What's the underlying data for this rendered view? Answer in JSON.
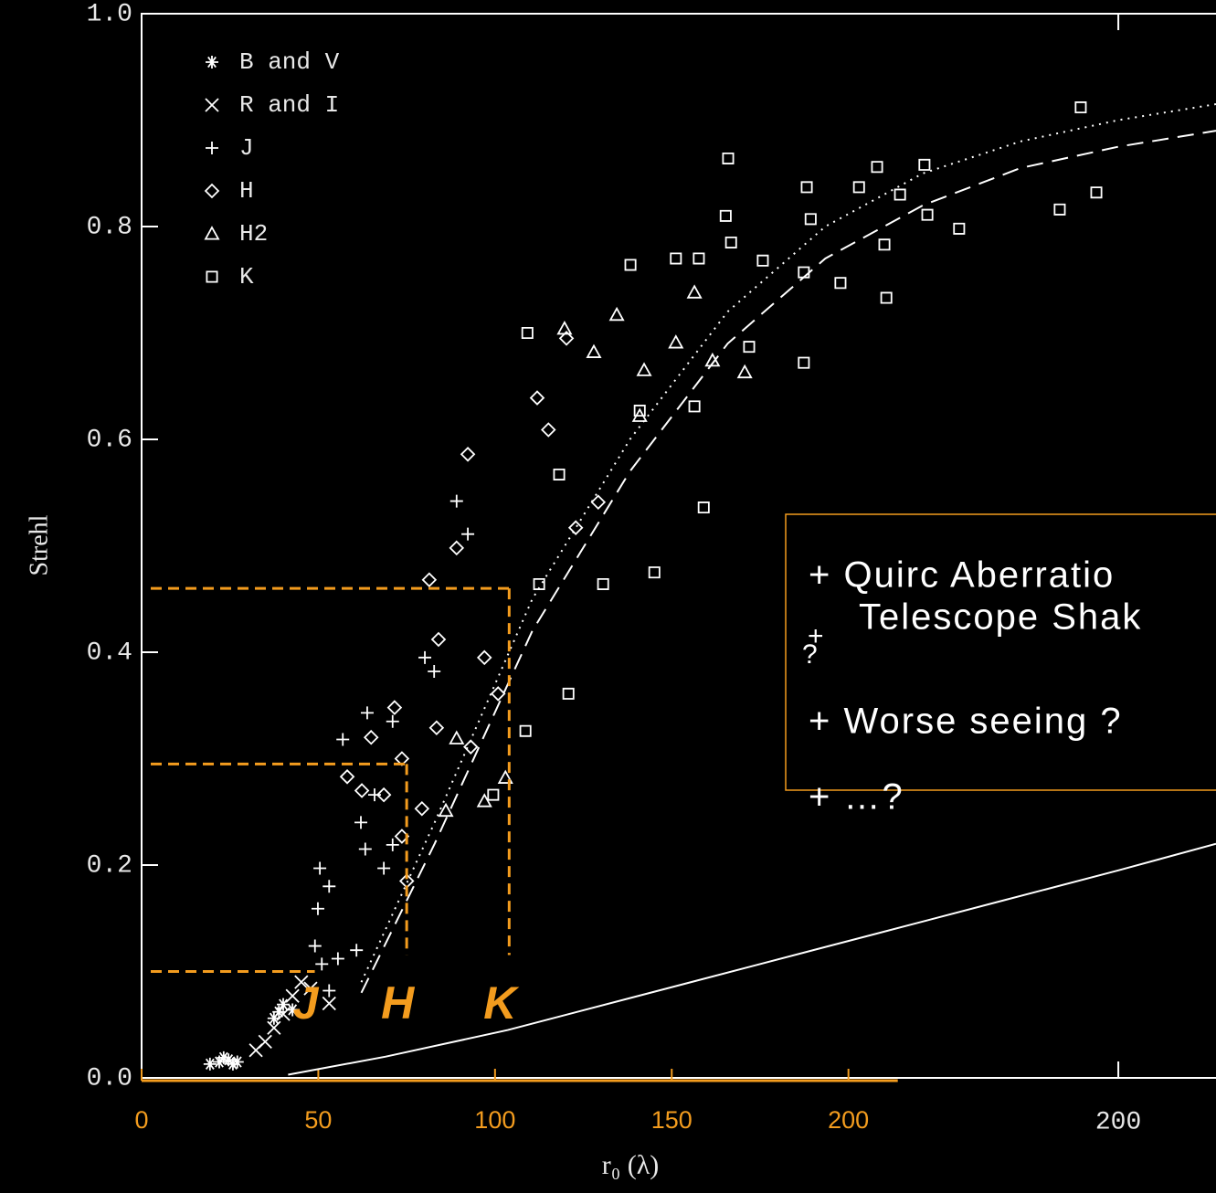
{
  "chart_data": {
    "type": "scatter",
    "xlabel": "r₀ (λ)",
    "ylabel": "Strehl",
    "xlim": [
      0,
      304
    ],
    "xticks": [
      0,
      50,
      100,
      150,
      200
    ],
    "x2lim": [
      0,
      220
    ],
    "x2ticks": [
      200
    ],
    "ylim": [
      0,
      1
    ],
    "yticks": [
      {
        "value": 0,
        "label": "0.0"
      },
      0.2,
      0.4,
      0.6,
      0.8,
      {
        "value": 1,
        "label": "1.0"
      }
    ],
    "axis_color": "#ffffff",
    "overlay_color": "#f39c1e",
    "legend": "upper left",
    "series": [
      {
        "name": "B and V",
        "marker": "asterisk",
        "color": "#ffffff",
        "axis": "x2",
        "x": [
          15.9,
          17.8,
          19.6,
          27.1,
          29.0,
          30.9,
          16.8,
          18.7,
          14.0,
          28.1
        ],
        "values": [
          0.015,
          0.017,
          0.015,
          0.056,
          0.069,
          0.064,
          0.019,
          0.013,
          0.013,
          0.062
        ]
      },
      {
        "name": "R and I",
        "marker": "cross",
        "color": "#ffffff",
        "axis": "x2",
        "x": [
          32.7,
          29.0,
          25.3,
          23.4,
          30.9,
          38.4,
          27.1,
          34.6
        ],
        "values": [
          0.09,
          0.06,
          0.034,
          0.026,
          0.077,
          0.07,
          0.047,
          0.084
        ]
      },
      {
        "name": "J",
        "marker": "plus",
        "color": "#ffffff",
        "axis": "x2",
        "x": [
          64.5,
          66.8,
          58.0,
          46.2,
          51.4,
          41.2,
          47.7,
          44.9,
          45.8,
          36.5,
          38.4,
          36.1,
          35.5,
          36.9,
          38.4,
          44.0,
          49.6,
          51.4,
          40.2,
          59.9
        ],
        "values": [
          0.542,
          0.511,
          0.395,
          0.343,
          0.335,
          0.318,
          0.266,
          0.24,
          0.215,
          0.197,
          0.18,
          0.159,
          0.124,
          0.107,
          0.082,
          0.12,
          0.197,
          0.219,
          0.112,
          0.382
        ]
      },
      {
        "name": "H",
        "marker": "diamond",
        "color": "#ffffff",
        "axis": "x2",
        "x": [
          66.8,
          81.0,
          87.0,
          58.9,
          64.5,
          60.8,
          51.8,
          47.0,
          42.1,
          53.3,
          54.3,
          57.4,
          49.6,
          60.4,
          70.2,
          67.4,
          73.0,
          88.9,
          83.3,
          93.5,
          53.3,
          45.1
        ],
        "values": [
          0.586,
          0.639,
          0.695,
          0.468,
          0.498,
          0.412,
          0.348,
          0.32,
          0.283,
          0.3,
          0.185,
          0.253,
          0.266,
          0.329,
          0.395,
          0.311,
          0.361,
          0.517,
          0.609,
          0.541,
          0.227,
          0.27
        ]
      },
      {
        "name": "H2",
        "marker": "triangle",
        "color": "#ffffff",
        "axis": "x2",
        "x": [
          86.6,
          97.3,
          113.2,
          109.4,
          92.6,
          102.0,
          64.5,
          62.3,
          70.2,
          74.5,
          102.9,
          116.9,
          123.5
        ],
        "values": [
          0.704,
          0.717,
          0.738,
          0.691,
          0.682,
          0.622,
          0.319,
          0.251,
          0.26,
          0.282,
          0.665,
          0.674,
          0.663
        ]
      },
      {
        "name": "K",
        "marker": "square",
        "color": "#ffffff",
        "axis": "x2",
        "x": [
          192.3,
          195.5,
          188.0,
          120.1,
          119.6,
          136.2,
          146.9,
          150.6,
          155.3,
          160.3,
          160.9,
          167.4,
          137.0,
          120.7,
          114.1,
          109.4,
          100.1,
          127.2,
          135.6,
          143.1,
          152.1,
          152.5,
          135.6,
          115.1,
          105.0,
          87.4,
          79.0,
          85.5,
          94.5,
          78.6,
          72.0,
          113.2,
          81.4,
          102.0,
          124.4
        ],
        "values": [
          0.912,
          0.832,
          0.816,
          0.864,
          0.81,
          0.837,
          0.837,
          0.856,
          0.83,
          0.858,
          0.811,
          0.798,
          0.807,
          0.785,
          0.77,
          0.77,
          0.764,
          0.768,
          0.757,
          0.747,
          0.783,
          0.733,
          0.672,
          0.536,
          0.475,
          0.361,
          0.7,
          0.567,
          0.464,
          0.326,
          0.266,
          0.631,
          0.464,
          0.627,
          0.687
        ]
      }
    ],
    "curves": [
      {
        "style": "solid",
        "axis": "x2",
        "x": [
          30,
          50,
          75,
          100,
          125,
          150,
          175,
          200,
          220
        ],
        "values": [
          0.003,
          0.02,
          0.045,
          0.075,
          0.105,
          0.135,
          0.165,
          0.195,
          0.22
        ]
      },
      {
        "style": "dashed",
        "axis": "x2",
        "x": [
          45,
          60,
          80,
          100,
          120,
          140,
          160,
          180,
          200,
          220
        ],
        "values": [
          0.08,
          0.22,
          0.42,
          0.57,
          0.69,
          0.77,
          0.82,
          0.855,
          0.875,
          0.89
        ]
      },
      {
        "style": "dotted",
        "axis": "x2",
        "x": [
          45,
          60,
          80,
          100,
          120,
          140,
          160,
          180,
          200,
          220
        ],
        "values": [
          0.09,
          0.24,
          0.45,
          0.6,
          0.72,
          0.8,
          0.85,
          0.88,
          0.9,
          0.915
        ]
      }
    ],
    "band_markers": [
      {
        "label": "J",
        "x": 49,
        "y": 0.1
      },
      {
        "label": "H",
        "x": 75,
        "y": 0.295
      },
      {
        "label": "K",
        "x": 104,
        "y": 0.46
      }
    ],
    "notes": [
      "+ Quirc Aberratio",
      "+",
      "Telescope Shak",
      "?",
      "+ Worse seeing ?",
      "+   …?"
    ]
  }
}
